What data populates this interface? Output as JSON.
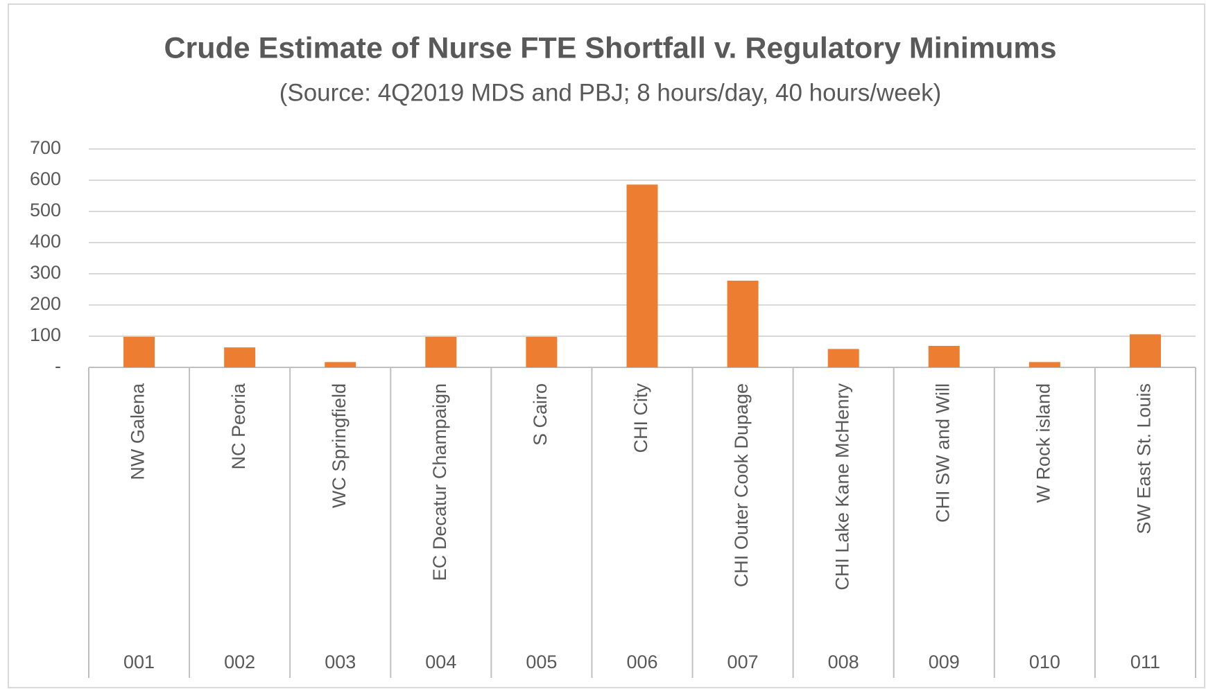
{
  "chart_data": {
    "type": "bar",
    "title": "Crude Estimate of Nurse FTE Shortfall v. Regulatory Minimums",
    "subtitle": "(Source: 4Q2019 MDS and PBJ; 8 hours/day, 40 hours/week)",
    "categories": [
      "NW Galena",
      "NC Peoria",
      "WC Springfield",
      "EC Decatur Champaign",
      "S Cairo",
      "CHI City",
      "CHI Outer Cook Dupage",
      "CHI Lake Kane McHenry",
      "CHI SW and Will",
      "W Rock island",
      "SW East St. Louis"
    ],
    "category_codes": [
      "001",
      "002",
      "003",
      "004",
      "005",
      "006",
      "007",
      "008",
      "009",
      "010",
      "011"
    ],
    "values": [
      98,
      64,
      17,
      98,
      98,
      586,
      278,
      59,
      69,
      17,
      106
    ],
    "color": "#ed7d31",
    "ylim": [
      0,
      700
    ],
    "yticks": [
      {
        "value": 0,
        "label": "-"
      },
      100,
      200,
      300,
      400,
      500,
      600,
      700
    ],
    "grid": true
  }
}
